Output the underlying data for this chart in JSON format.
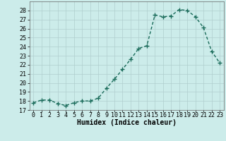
{
  "x": [
    0,
    1,
    2,
    3,
    4,
    5,
    6,
    7,
    8,
    9,
    10,
    11,
    12,
    13,
    14,
    15,
    16,
    17,
    18,
    19,
    20,
    21,
    22,
    23
  ],
  "y": [
    17.8,
    18.1,
    18.1,
    17.7,
    17.5,
    17.8,
    18.0,
    18.0,
    18.3,
    19.4,
    20.4,
    21.5,
    22.6,
    23.8,
    24.1,
    27.5,
    27.3,
    27.4,
    28.1,
    28.0,
    27.3,
    26.1,
    23.5,
    22.2
  ],
  "line_color": "#1a6b5a",
  "marker": "+",
  "marker_size": 4,
  "marker_edge_width": 1.0,
  "line_width": 1.0,
  "bg_color": "#ccecea",
  "grid_color": "#b0cece",
  "xlabel": "Humidex (Indice chaleur)",
  "xlabel_fontsize": 7,
  "tick_fontsize": 6,
  "ylim": [
    17,
    29
  ],
  "yticks": [
    17,
    18,
    19,
    20,
    21,
    22,
    23,
    24,
    25,
    26,
    27,
    28
  ],
  "xlim": [
    -0.5,
    23.5
  ],
  "xticks": [
    0,
    1,
    2,
    3,
    4,
    5,
    6,
    7,
    8,
    9,
    10,
    11,
    12,
    13,
    14,
    15,
    16,
    17,
    18,
    19,
    20,
    21,
    22,
    23
  ],
  "xtick_labels": [
    "0",
    "1",
    "2",
    "3",
    "4",
    "5",
    "6",
    "7",
    "8",
    "9",
    "10",
    "11",
    "12",
    "13",
    "14",
    "15",
    "16",
    "17",
    "18",
    "19",
    "20",
    "21",
    "22",
    "23"
  ]
}
